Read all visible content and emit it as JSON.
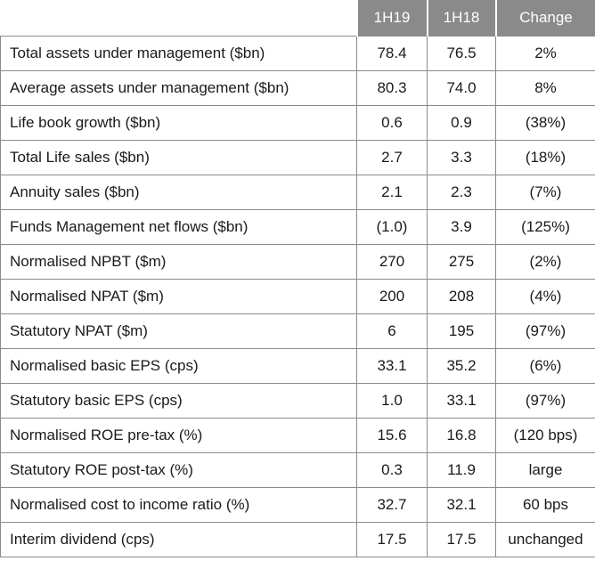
{
  "table": {
    "headers": [
      "",
      "1H19",
      "1H18",
      "Change"
    ],
    "rows": [
      {
        "label": "Total assets under management ($bn)",
        "h1h19": "78.4",
        "h1h18": "76.5",
        "change": "2%"
      },
      {
        "label": "Average assets under management ($bn)",
        "h1h19": "80.3",
        "h1h18": "74.0",
        "change": "8%"
      },
      {
        "label": "Life book growth ($bn)",
        "h1h19": "0.6",
        "h1h18": "0.9",
        "change": "(38%)"
      },
      {
        "label": "Total Life sales ($bn)",
        "h1h19": "2.7",
        "h1h18": "3.3",
        "change": "(18%)"
      },
      {
        "label": "Annuity sales ($bn)",
        "h1h19": "2.1",
        "h1h18": "2.3",
        "change": "(7%)"
      },
      {
        "label": "Funds Management net flows ($bn)",
        "h1h19": "(1.0)",
        "h1h18": "3.9",
        "change": "(125%)"
      },
      {
        "label": "Normalised NPBT ($m)",
        "h1h19": "270",
        "h1h18": "275",
        "change": "(2%)"
      },
      {
        "label": "Normalised NPAT ($m)",
        "h1h19": "200",
        "h1h18": "208",
        "change": "(4%)"
      },
      {
        "label": "Statutory NPAT ($m)",
        "h1h19": "6",
        "h1h18": "195",
        "change": "(97%)"
      },
      {
        "label": "Normalised basic EPS (cps)",
        "h1h19": "33.1",
        "h1h18": "35.2",
        "change": "(6%)"
      },
      {
        "label": "Statutory basic EPS (cps)",
        "h1h19": "1.0",
        "h1h18": "33.1",
        "change": "(97%)"
      },
      {
        "label": "Normalised ROE pre-tax (%)",
        "h1h19": "15.6",
        "h1h18": "16.8",
        "change": "(120 bps)"
      },
      {
        "label": "Statutory ROE post-tax (%)",
        "h1h19": "0.3",
        "h1h18": "11.9",
        "change": "large"
      },
      {
        "label": "Normalised cost to income ratio (%)",
        "h1h19": "32.7",
        "h1h18": "32.1",
        "change": "60 bps"
      },
      {
        "label": "Interim dividend (cps)",
        "h1h19": "17.5",
        "h1h18": "17.5",
        "change": "unchanged"
      }
    ]
  },
  "colors": {
    "header_bg": "#8a8a8a",
    "header_text": "#ffffff",
    "border": "#8a8a8a",
    "text": "#1a1a1a"
  }
}
